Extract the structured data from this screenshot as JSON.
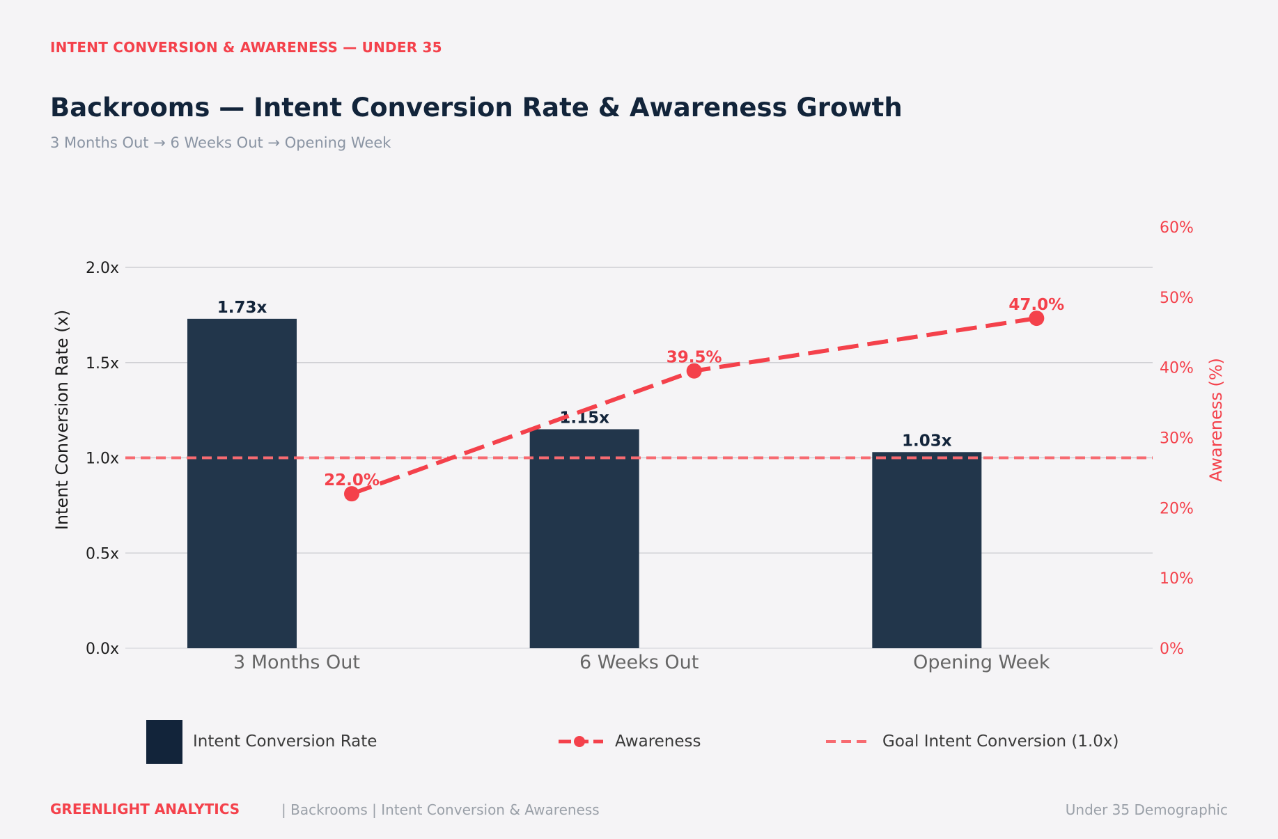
{
  "header": {
    "kicker": "INTENT CONVERSION & AWARENESS — UNDER 35",
    "title": "Backrooms — Intent Conversion Rate & Awareness Growth",
    "subtitle": "3 Months Out  →  6 Weeks Out  →  Opening Week"
  },
  "chart_data": {
    "type": "bar",
    "categories": [
      "3 Months Out",
      "6 Weeks Out",
      "Opening Week"
    ],
    "series": [
      {
        "name": "Intent Conversion Rate",
        "type": "bar",
        "axis": "left",
        "values": [
          1.73,
          1.15,
          1.03
        ],
        "labels": [
          "1.73x",
          "1.15x",
          "1.03x"
        ],
        "color": "#22364b"
      },
      {
        "name": "Awareness",
        "type": "line",
        "axis": "right",
        "values": [
          22.0,
          39.5,
          47.0
        ],
        "labels": [
          "22.0%",
          "39.5%",
          "47.0%"
        ],
        "color": "#f4414b"
      }
    ],
    "reference_line": {
      "name": "Goal Intent Conversion (1.0x)",
      "value": 1.0,
      "color": "#f76a70"
    },
    "ylabel": "Intent Conversion Rate (x)",
    "y2label": "Awareness (%)",
    "ylim": [
      0,
      2.0
    ],
    "y2lim": [
      0,
      60
    ],
    "yticks": [
      "0.0x",
      "0.5x",
      "1.0x",
      "1.5x",
      "2.0x"
    ],
    "y2ticks": [
      "0%",
      "10%",
      "20%",
      "30%",
      "40%",
      "50%",
      "60%"
    ],
    "grid": true,
    "legend_position": "bottom"
  },
  "legend": {
    "bar_label": "Intent Conversion Rate",
    "line_label": "Awareness",
    "goal_label": "Goal Intent Conversion (1.0x)"
  },
  "footer": {
    "brand": "GREENLIGHT ANALYTICS",
    "meta": "|  Backrooms  |  Intent Conversion & Awareness",
    "right": "Under 35 Demographic"
  },
  "colors": {
    "accent": "#f4414b",
    "navy": "#12243a",
    "bar": "#22364b",
    "background": "#f5f4f6"
  }
}
